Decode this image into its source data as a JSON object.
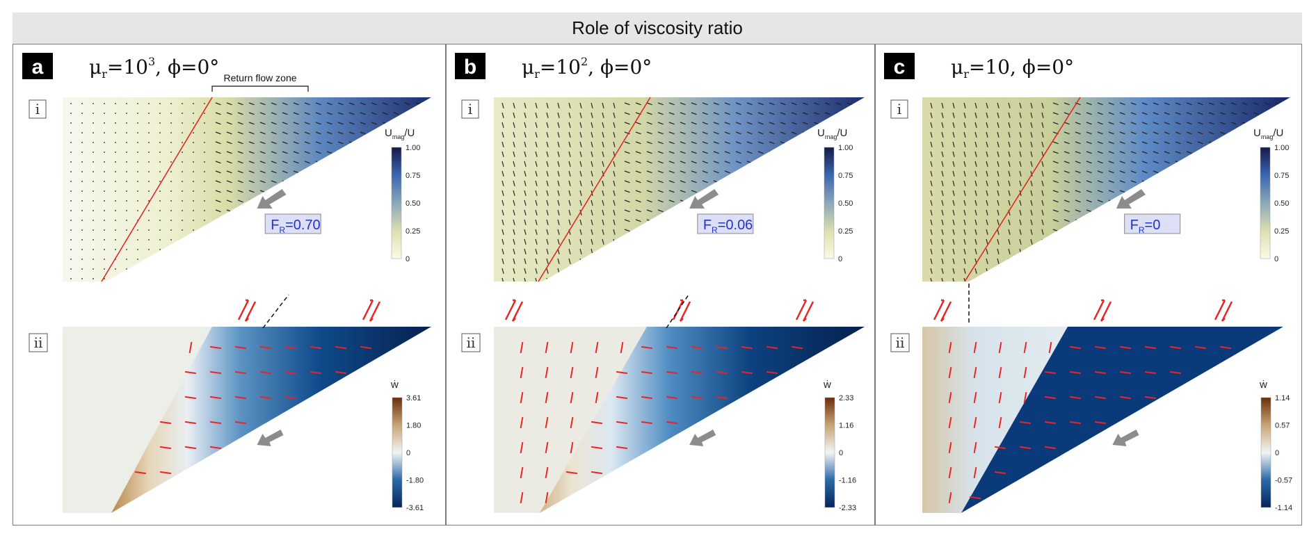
{
  "figure_title": "Role of viscosity ratio",
  "colors": {
    "red_line": "#e02020",
    "shear_red": "#ee2222",
    "arrow_gray": "#8c8c8c",
    "fr_box_fill": "#dcdff5",
    "fr_text": "#2233cc"
  },
  "panels": [
    {
      "label": "a",
      "title_mu": "μ",
      "title_sub": "r",
      "title_eq": "=10",
      "title_sup": "3",
      "title_phi": ", ϕ=0°",
      "row_i": "i",
      "row_ii": "ii",
      "return_flow_label": "Return flow zone",
      "fr_prefix": "F",
      "fr_sub": "R",
      "fr_value": "=0.70",
      "umag_label": "U",
      "umag_sub": "mag",
      "umag_suffix": "/U",
      "umag_ticks": [
        "1.00",
        "0.75",
        "0.50",
        "0.25",
        "0"
      ],
      "w_label": "ẇ",
      "w_ticks": [
        "3.61",
        "1.80",
        "0",
        "-1.80",
        "-3.61"
      ]
    },
    {
      "label": "b",
      "title_mu": "μ",
      "title_sub": "r",
      "title_eq": "=10",
      "title_sup": "2",
      "title_phi": ", ϕ=0°",
      "row_i": "i",
      "row_ii": "ii",
      "return_flow_label": "",
      "fr_prefix": "F",
      "fr_sub": "R",
      "fr_value": "=0.06",
      "umag_label": "U",
      "umag_sub": "mag",
      "umag_suffix": "/U",
      "umag_ticks": [
        "1.00",
        "0.75",
        "0.50",
        "0.25",
        "0"
      ],
      "w_label": "ẇ",
      "w_ticks": [
        "2.33",
        "1.16",
        "0",
        "-1.16",
        "-2.33"
      ]
    },
    {
      "label": "c",
      "title_mu": "μ",
      "title_sub": "r",
      "title_eq": "=10",
      "title_sup": "",
      "title_phi": ", ϕ=0°",
      "row_i": "i",
      "row_ii": "ii",
      "return_flow_label": "",
      "fr_prefix": "F",
      "fr_sub": "R",
      "fr_value": "=0",
      "umag_label": "U",
      "umag_sub": "mag",
      "umag_suffix": "/U",
      "umag_ticks": [
        "1.00",
        "0.75",
        "0.50",
        "0.25",
        "0"
      ],
      "w_label": "ẇ",
      "w_ticks": [
        "1.14",
        "0.57",
        "0",
        "-0.57",
        "-1.14"
      ]
    }
  ]
}
